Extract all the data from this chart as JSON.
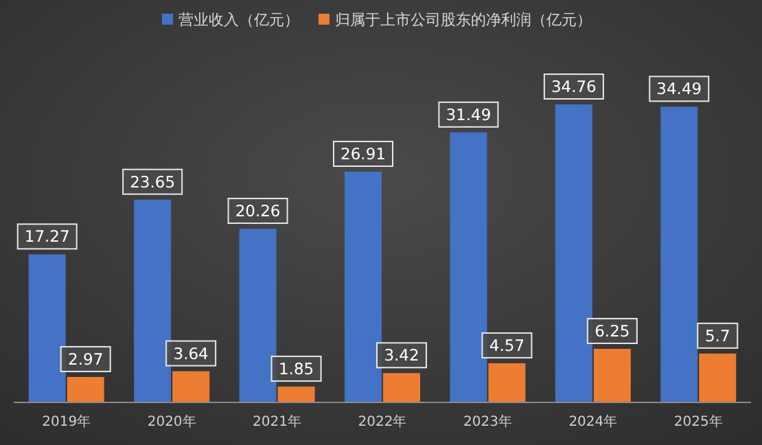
{
  "chart_data": {
    "type": "bar",
    "categories": [
      "2019年",
      "2020年",
      "2021年",
      "2022年",
      "2023年",
      "2024年",
      "2025年"
    ],
    "series": [
      {
        "name": "营业收入（亿元）",
        "color": "#4472c4",
        "values": [
          17.27,
          23.65,
          20.26,
          26.91,
          31.49,
          34.76,
          34.49
        ]
      },
      {
        "name": "归属于上市公司股东的净利润（亿元）",
        "color": "#ed7d31",
        "values": [
          2.97,
          3.64,
          1.85,
          3.42,
          4.57,
          6.25,
          5.7
        ]
      }
    ],
    "data_labels": true,
    "legend": "top"
  }
}
